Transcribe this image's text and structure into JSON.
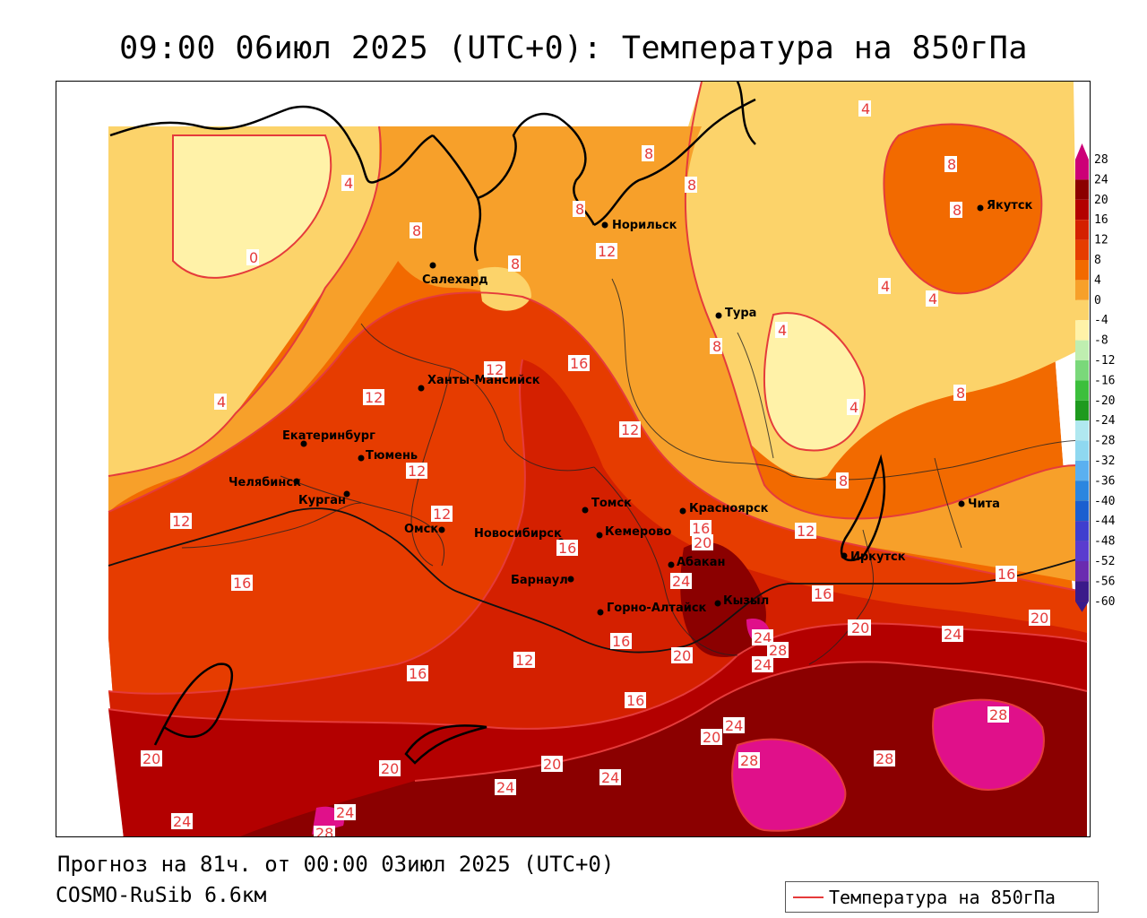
{
  "header": {
    "title": "09:00 06июл 2025 (UTC+0): Температура на 850гПа"
  },
  "footer": {
    "forecast": "Прогноз на 81ч. от 00:00 03июл 2025 (UTC+0)",
    "model": "COSMO-RuSib 6.6км"
  },
  "legend": {
    "series_label": "Температура на 850гПа",
    "line_color": "#e53b3b"
  },
  "colorbar": {
    "ticks": [
      "28",
      "24",
      "20",
      "16",
      "12",
      "8",
      "4",
      "0",
      "-4",
      "-8",
      "-12",
      "-16",
      "-20",
      "-24",
      "-28",
      "-32",
      "-36",
      "-40",
      "-44",
      "-48",
      "-52",
      "-56",
      "-60"
    ],
    "colors": [
      "#cc0077",
      "#8b0000",
      "#b30000",
      "#d42000",
      "#e63c00",
      "#f26a00",
      "#f7a02a",
      "#fcd36a",
      "#fff2a8",
      "#bfeeb0",
      "#7ad87a",
      "#3cbf3c",
      "#1e9a1e",
      "#b0e8f0",
      "#8fd8f0",
      "#5ab0f0",
      "#2b86e0",
      "#1b5fd0",
      "#3f3fcf",
      "#5a3ccf",
      "#6a2bb0",
      "#3a1a8a"
    ]
  },
  "cities": [
    {
      "name": "Салехард"
    },
    {
      "name": "Норильск"
    },
    {
      "name": "Якутск"
    },
    {
      "name": "Тура"
    },
    {
      "name": "Ханты-Мансийск"
    },
    {
      "name": "Екатеринбург"
    },
    {
      "name": "Тюмень"
    },
    {
      "name": "Челябинск"
    },
    {
      "name": "Курган"
    },
    {
      "name": "Омск"
    },
    {
      "name": "Новосибирск"
    },
    {
      "name": "Томск"
    },
    {
      "name": "Кемерово"
    },
    {
      "name": "Красноярск"
    },
    {
      "name": "Абакан"
    },
    {
      "name": "Барнаул"
    },
    {
      "name": "Горно-Алтайск"
    },
    {
      "name": "Кызыл"
    },
    {
      "name": "Иркутск"
    },
    {
      "name": "Чита"
    }
  ],
  "contour_labels": [
    "4",
    "8",
    "0",
    "8",
    "8",
    "8",
    "8",
    "4",
    "8",
    "8",
    "12",
    "12",
    "16",
    "12",
    "12",
    "4",
    "4",
    "4",
    "4",
    "8",
    "4",
    "8",
    "8",
    "12",
    "12",
    "12",
    "16",
    "16",
    "20",
    "16",
    "12",
    "16",
    "20",
    "24",
    "16",
    "16",
    "24",
    "28",
    "24",
    "16",
    "12",
    "20",
    "16",
    "20",
    "24",
    "20",
    "24",
    "20",
    "28",
    "20",
    "20",
    "20",
    "24",
    "24",
    "24",
    "28",
    "28",
    "24",
    "28"
  ]
}
